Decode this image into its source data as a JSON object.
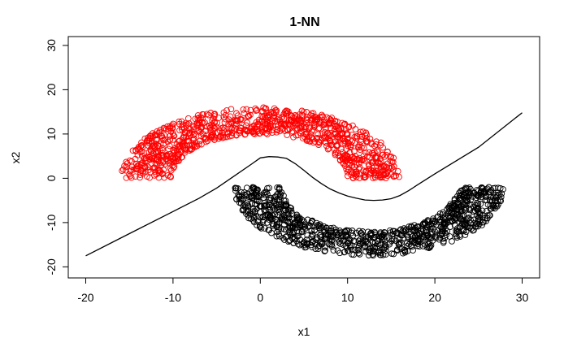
{
  "chart_data": {
    "type": "scatter",
    "title": "1-NN",
    "xlabel": "x1",
    "ylabel": "x2",
    "xlim": [
      -22,
      32
    ],
    "ylim": [
      -22.5,
      32
    ],
    "xticks": [
      -20,
      -10,
      0,
      10,
      20,
      30
    ],
    "yticks": [
      -20,
      -10,
      0,
      10,
      20,
      30
    ],
    "xtick_labels": [
      "-20",
      "-10",
      "0",
      "10",
      "20",
      "30"
    ],
    "ytick_labels": [
      "-20",
      "-10",
      "0",
      "10",
      "20",
      "30"
    ],
    "grid": false,
    "legend": "none",
    "series": [
      {
        "color": "#ff0000",
        "marker": "open-circle",
        "shape": "upper half-moon (upper half annulus)",
        "center": [
          0,
          0
        ],
        "radius_range": [
          10,
          16
        ],
        "angle_range_deg": [
          0,
          180
        ],
        "x_range": [
          -15,
          15
        ],
        "y_range": [
          2.5,
          17
        ]
      },
      {
        "color": "#000000",
        "marker": "open-circle",
        "shape": "lower half-moon (lower half annulus)",
        "center": [
          12.5,
          -2
        ],
        "radius_range": [
          10,
          15.5
        ],
        "angle_range_deg": [
          180,
          360
        ],
        "x_range": [
          -2.5,
          27.5
        ],
        "y_range": [
          -17.5,
          -2.5
        ]
      }
    ],
    "decision_boundary": {
      "color": "#000000",
      "x": [
        -20,
        -15,
        -10,
        -7,
        -5,
        -3,
        -1,
        0,
        1,
        2,
        3,
        4,
        5,
        6,
        7,
        8,
        9,
        10,
        11,
        12,
        13,
        14,
        15,
        16,
        17,
        18,
        20,
        25,
        30
      ],
      "y": [
        -17.5,
        -12.5,
        -7.5,
        -4.5,
        -2.2,
        0.5,
        3.2,
        4.6,
        4.9,
        4.8,
        4.5,
        3.3,
        1.8,
        0.2,
        -1.2,
        -2.4,
        -3.3,
        -4.0,
        -4.5,
        -4.9,
        -5.0,
        -4.9,
        -4.6,
        -3.9,
        -2.8,
        -1.5,
        1.0,
        7.0,
        14.8
      ]
    }
  }
}
